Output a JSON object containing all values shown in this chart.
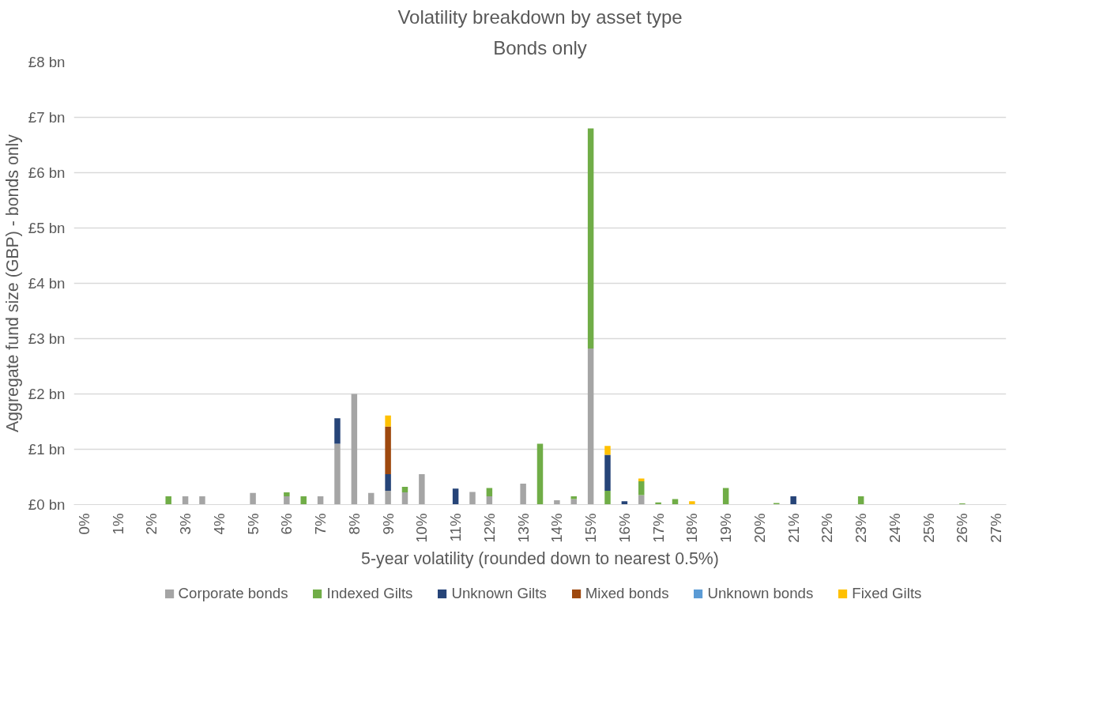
{
  "chart_data": {
    "type": "bar",
    "title": "Volatility breakdown by asset type",
    "subtitle": "Bonds only",
    "xlabel": "5-year volatility (rounded down to nearest 0.5%)",
    "ylabel": "Aggregate fund size (GBP) - bonds only",
    "categories": [
      "0%",
      null,
      "1%",
      null,
      "2%",
      null,
      "3%",
      null,
      "4%",
      null,
      "5%",
      null,
      "6%",
      null,
      "7%",
      null,
      "8%",
      null,
      "9%",
      null,
      "10%",
      null,
      "11%",
      null,
      "12%",
      null,
      "13%",
      null,
      "14%",
      null,
      "15%",
      null,
      "16%",
      null,
      "17%",
      null,
      "18%",
      null,
      "19%",
      null,
      "20%",
      null,
      "21%",
      null,
      "22%",
      null,
      "23%",
      null,
      "24%",
      null,
      "25%",
      null,
      "26%",
      null,
      "27%"
    ],
    "stacked": true,
    "series": [
      {
        "name": "Corporate bonds",
        "color": "#a5a5a5",
        "values": [
          null,
          null,
          null,
          null,
          null,
          null,
          0.15,
          0.15,
          null,
          null,
          0.21,
          null,
          0.15,
          null,
          0.15,
          1.1,
          2.0,
          0.21,
          0.25,
          0.22,
          0.55,
          null,
          null,
          0.23,
          0.15,
          null,
          0.38,
          null,
          0.08,
          0.1,
          2.82,
          null,
          null,
          0.17,
          null,
          null,
          null,
          null,
          null,
          null,
          null,
          null,
          null,
          null,
          null,
          null,
          null,
          null,
          null,
          null,
          null,
          null,
          null,
          null,
          null
        ]
      },
      {
        "name": "Indexed Gilts",
        "color": "#70ad47",
        "values": [
          null,
          null,
          null,
          null,
          null,
          0.15,
          null,
          null,
          null,
          null,
          null,
          null,
          0.07,
          0.15,
          null,
          null,
          null,
          null,
          null,
          0.1,
          null,
          null,
          null,
          null,
          0.15,
          null,
          null,
          1.1,
          null,
          0.05,
          3.98,
          0.25,
          null,
          0.25,
          0.04,
          0.1,
          null,
          null,
          0.3,
          null,
          null,
          0.03,
          null,
          null,
          null,
          null,
          0.15,
          null,
          null,
          null,
          null,
          null,
          0.02,
          null,
          null
        ]
      },
      {
        "name": "Unknown Gilts",
        "color": "#264478",
        "values": [
          null,
          null,
          null,
          null,
          null,
          null,
          null,
          null,
          null,
          null,
          null,
          null,
          null,
          null,
          null,
          0.46,
          null,
          null,
          0.3,
          null,
          null,
          null,
          0.29,
          null,
          null,
          null,
          null,
          null,
          null,
          null,
          null,
          0.65,
          0.06,
          null,
          null,
          null,
          null,
          null,
          null,
          null,
          null,
          null,
          0.15,
          null,
          null,
          null,
          null,
          null,
          null,
          null,
          null,
          null,
          null,
          null,
          null
        ]
      },
      {
        "name": "Mixed bonds",
        "color": "#9e480e",
        "values": [
          null,
          null,
          null,
          null,
          null,
          null,
          null,
          null,
          null,
          null,
          null,
          null,
          null,
          null,
          null,
          null,
          null,
          null,
          0.86,
          null,
          null,
          null,
          null,
          null,
          null,
          null,
          null,
          null,
          null,
          null,
          null,
          null,
          null,
          null,
          null,
          null,
          null,
          null,
          null,
          null,
          null,
          null,
          null,
          null,
          null,
          null,
          null,
          null,
          null,
          null,
          null,
          null,
          null,
          null,
          null
        ]
      },
      {
        "name": "Unknown bonds",
        "color": "#5b9bd5",
        "values": [
          null,
          null,
          null,
          null,
          null,
          null,
          null,
          null,
          null,
          null,
          null,
          null,
          null,
          null,
          null,
          null,
          null,
          null,
          null,
          null,
          null,
          null,
          null,
          null,
          null,
          null,
          null,
          null,
          null,
          null,
          null,
          null,
          null,
          null,
          null,
          null,
          null,
          null,
          null,
          null,
          null,
          null,
          null,
          null,
          null,
          null,
          null,
          null,
          null,
          null,
          null,
          null,
          null,
          null,
          null
        ]
      },
      {
        "name": "Fixed Gilts",
        "color": "#ffc000",
        "values": [
          null,
          null,
          null,
          null,
          null,
          null,
          null,
          null,
          null,
          null,
          null,
          null,
          null,
          null,
          null,
          null,
          null,
          null,
          0.2,
          null,
          null,
          null,
          null,
          null,
          null,
          null,
          null,
          null,
          null,
          null,
          null,
          0.16,
          null,
          0.05,
          null,
          null,
          0.06,
          null,
          null,
          null,
          null,
          null,
          null,
          null,
          null,
          null,
          null,
          null,
          null,
          null,
          null,
          null,
          null,
          null,
          null
        ]
      }
    ],
    "ylim": [
      0,
      8
    ],
    "yticks": [
      {
        "value": 0,
        "label": "£0 bn"
      },
      {
        "value": 1,
        "label": "£1 bn"
      },
      {
        "value": 2,
        "label": "£2 bn"
      },
      {
        "value": 3,
        "label": "£3 bn"
      },
      {
        "value": 4,
        "label": "£4 bn"
      },
      {
        "value": 5,
        "label": "£5 bn"
      },
      {
        "value": 6,
        "label": "£6 bn"
      },
      {
        "value": 7,
        "label": "£7 bn"
      },
      {
        "value": 8,
        "label": "£8 bn"
      }
    ],
    "grid": "y",
    "legend": "bottom"
  }
}
